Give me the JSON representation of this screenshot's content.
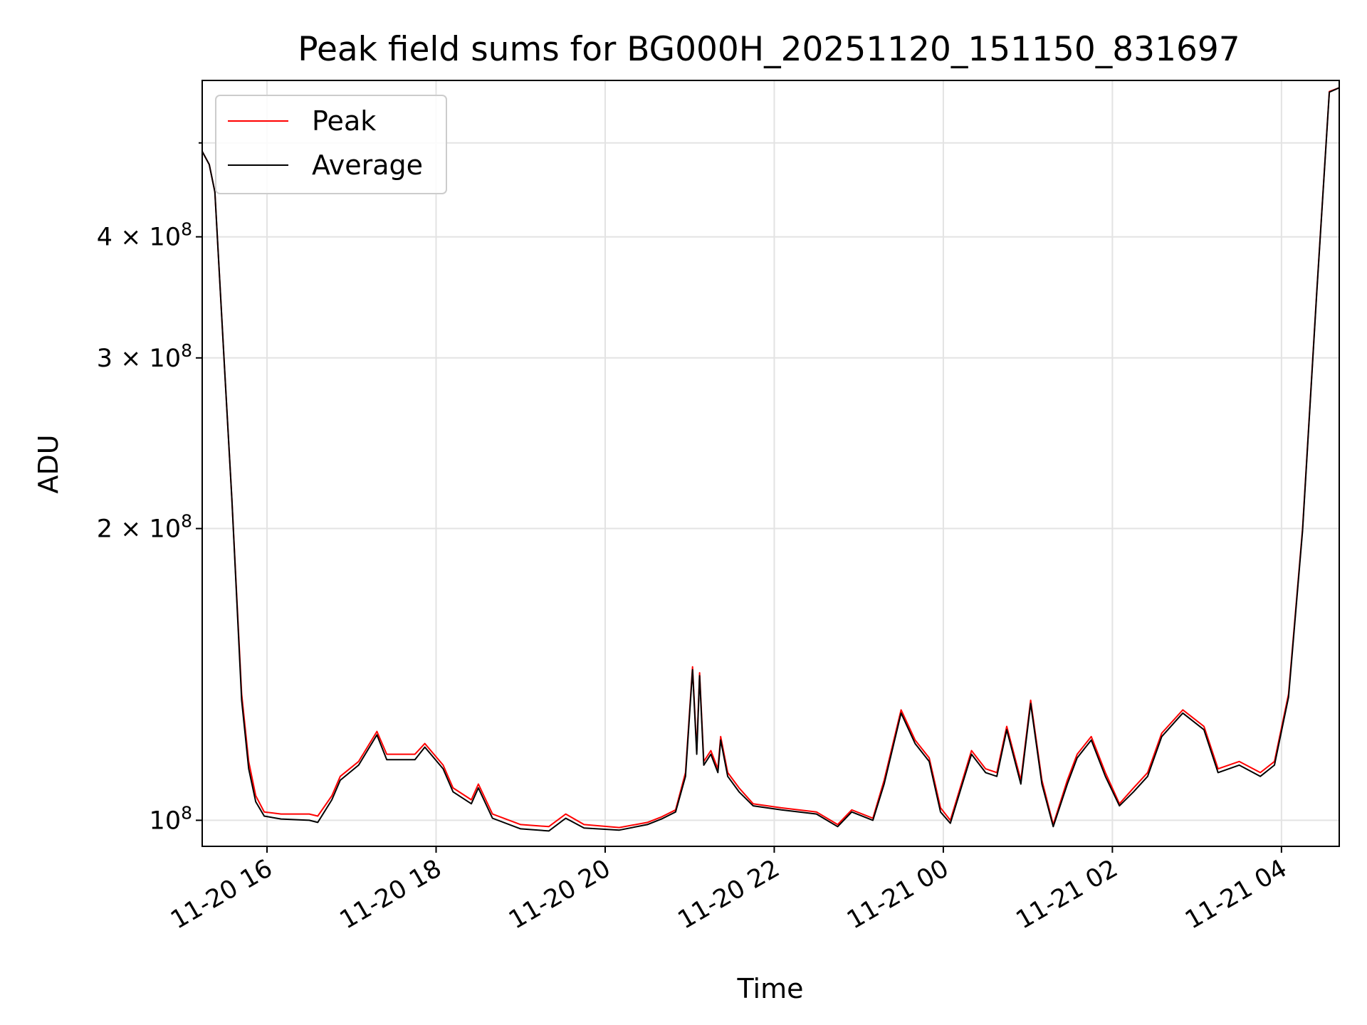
{
  "chart_data": {
    "type": "line",
    "title": "Peak field sums for BG000H_20251120_151150_831697",
    "xlabel": "Time",
    "ylabel": "ADU",
    "yscale": "log",
    "grid": true,
    "legend_position": "top-left",
    "xlim": [
      "2025-11-20 15:14",
      "2025-11-21 04:41"
    ],
    "ylim": [
      94000000,
      580000000
    ],
    "x_ticks": [
      {
        "value": "2025-11-20 16:00",
        "label": "11-20 16"
      },
      {
        "value": "2025-11-20 18:00",
        "label": "11-20 18"
      },
      {
        "value": "2025-11-20 20:00",
        "label": "11-20 20"
      },
      {
        "value": "2025-11-20 22:00",
        "label": "11-20 22"
      },
      {
        "value": "2025-11-21 00:00",
        "label": "11-21 00"
      },
      {
        "value": "2025-11-21 02:00",
        "label": "11-21 02"
      },
      {
        "value": "2025-11-21 04:00",
        "label": "11-21 04"
      }
    ],
    "y_ticks": [
      {
        "value": 100000000,
        "base": "10",
        "exp": "8"
      },
      {
        "value": 200000000,
        "base": "2 × 10",
        "exp": "8"
      },
      {
        "value": 300000000,
        "base": "3 × 10",
        "exp": "8"
      },
      {
        "value": 400000000,
        "base": "4 × 10",
        "exp": "8"
      }
    ],
    "y_minor_ticks": [
      500000000
    ],
    "series": [
      {
        "name": "Peak",
        "color": "#ff0000",
        "points": [
          [
            "2025-11-20 15:14",
            490000000
          ],
          [
            "2025-11-20 15:19",
            475000000
          ],
          [
            "2025-11-20 15:23",
            445000000
          ],
          [
            "2025-11-20 15:30",
            290000000
          ],
          [
            "2025-11-20 15:35",
            215000000
          ],
          [
            "2025-11-20 15:42",
            135000000
          ],
          [
            "2025-11-20 15:47",
            115000000
          ],
          [
            "2025-11-20 15:52",
            106000000
          ],
          [
            "2025-11-20 15:58",
            102000000
          ],
          [
            "2025-11-20 16:10",
            101500000
          ],
          [
            "2025-11-20 16:30",
            101500000
          ],
          [
            "2025-11-20 16:36",
            101000000
          ],
          [
            "2025-11-20 16:46",
            106000000
          ],
          [
            "2025-11-20 16:52",
            111000000
          ],
          [
            "2025-11-20 17:05",
            115000000
          ],
          [
            "2025-11-20 17:18",
            123500000
          ],
          [
            "2025-11-20 17:25",
            117000000
          ],
          [
            "2025-11-20 17:45",
            117000000
          ],
          [
            "2025-11-20 17:52",
            120000000
          ],
          [
            "2025-11-20 18:05",
            114000000
          ],
          [
            "2025-11-20 18:12",
            108000000
          ],
          [
            "2025-11-20 18:25",
            105000000
          ],
          [
            "2025-11-20 18:30",
            109000000
          ],
          [
            "2025-11-20 18:40",
            101500000
          ],
          [
            "2025-11-20 19:00",
            99000000
          ],
          [
            "2025-11-20 19:20",
            98500000
          ],
          [
            "2025-11-20 19:32",
            101500000
          ],
          [
            "2025-11-20 19:45",
            99000000
          ],
          [
            "2025-11-20 20:10",
            98300000
          ],
          [
            "2025-11-20 20:30",
            99500000
          ],
          [
            "2025-11-20 20:40",
            100800000
          ],
          [
            "2025-11-20 20:50",
            102500000
          ],
          [
            "2025-11-20 20:57",
            112000000
          ],
          [
            "2025-11-20 21:02",
            144000000
          ],
          [
            "2025-11-20 21:05",
            118000000
          ],
          [
            "2025-11-20 21:07",
            142000000
          ],
          [
            "2025-11-20 21:10",
            115000000
          ],
          [
            "2025-11-20 21:15",
            118000000
          ],
          [
            "2025-11-20 21:20",
            113000000
          ],
          [
            "2025-11-20 21:22",
            122000000
          ],
          [
            "2025-11-20 21:27",
            112000000
          ],
          [
            "2025-11-20 21:35",
            108000000
          ],
          [
            "2025-11-20 21:45",
            104000000
          ],
          [
            "2025-11-20 22:05",
            103000000
          ],
          [
            "2025-11-20 22:30",
            102000000
          ],
          [
            "2025-11-20 22:45",
            99000000
          ],
          [
            "2025-11-20 22:55",
            102500000
          ],
          [
            "2025-11-20 23:10",
            100500000
          ],
          [
            "2025-11-20 23:18",
            110000000
          ],
          [
            "2025-11-20 23:30",
            130000000
          ],
          [
            "2025-11-20 23:40",
            121000000
          ],
          [
            "2025-11-20 23:50",
            116000000
          ],
          [
            "2025-11-20 23:58",
            103000000
          ],
          [
            "2025-11-21 00:05",
            100000000
          ],
          [
            "2025-11-21 00:20",
            118000000
          ],
          [
            "2025-11-21 00:30",
            113000000
          ],
          [
            "2025-11-21 00:38",
            112000000
          ],
          [
            "2025-11-21 00:45",
            125000000
          ],
          [
            "2025-11-21 00:55",
            110000000
          ],
          [
            "2025-11-21 01:02",
            133000000
          ],
          [
            "2025-11-21 01:10",
            110000000
          ],
          [
            "2025-11-21 01:18",
            99000000
          ],
          [
            "2025-11-21 01:28",
            110000000
          ],
          [
            "2025-11-21 01:35",
            117000000
          ],
          [
            "2025-11-21 01:45",
            122000000
          ],
          [
            "2025-11-21 01:55",
            112000000
          ],
          [
            "2025-11-21 02:05",
            104000000
          ],
          [
            "2025-11-21 02:15",
            108000000
          ],
          [
            "2025-11-21 02:25",
            112000000
          ],
          [
            "2025-11-21 02:35",
            123000000
          ],
          [
            "2025-11-21 02:50",
            130000000
          ],
          [
            "2025-11-21 03:05",
            125000000
          ],
          [
            "2025-11-21 03:15",
            113000000
          ],
          [
            "2025-11-21 03:30",
            115000000
          ],
          [
            "2025-11-21 03:45",
            112000000
          ],
          [
            "2025-11-21 03:55",
            115000000
          ],
          [
            "2025-11-21 04:05",
            135000000
          ],
          [
            "2025-11-21 04:15",
            200000000
          ],
          [
            "2025-11-21 04:25",
            350000000
          ],
          [
            "2025-11-21 04:34",
            565000000
          ],
          [
            "2025-11-21 04:41",
            570000000
          ]
        ]
      },
      {
        "name": "Average",
        "color": "#000000",
        "points": [
          [
            "2025-11-20 15:14",
            490000000
          ],
          [
            "2025-11-20 15:19",
            475000000
          ],
          [
            "2025-11-20 15:23",
            445000000
          ],
          [
            "2025-11-20 15:30",
            290000000
          ],
          [
            "2025-11-20 15:35",
            215000000
          ],
          [
            "2025-11-20 15:42",
            133000000
          ],
          [
            "2025-11-20 15:47",
            113000000
          ],
          [
            "2025-11-20 15:52",
            104500000
          ],
          [
            "2025-11-20 15:58",
            101000000
          ],
          [
            "2025-11-20 16:10",
            100300000
          ],
          [
            "2025-11-20 16:30",
            100000000
          ],
          [
            "2025-11-20 16:36",
            99500000
          ],
          [
            "2025-11-20 16:46",
            105000000
          ],
          [
            "2025-11-20 16:52",
            110000000
          ],
          [
            "2025-11-20 17:05",
            114000000
          ],
          [
            "2025-11-20 17:18",
            122500000
          ],
          [
            "2025-11-20 17:25",
            115500000
          ],
          [
            "2025-11-20 17:45",
            115500000
          ],
          [
            "2025-11-20 17:52",
            119000000
          ],
          [
            "2025-11-20 18:05",
            113000000
          ],
          [
            "2025-11-20 18:12",
            107000000
          ],
          [
            "2025-11-20 18:25",
            104000000
          ],
          [
            "2025-11-20 18:30",
            108000000
          ],
          [
            "2025-11-20 18:40",
            100500000
          ],
          [
            "2025-11-20 19:00",
            98000000
          ],
          [
            "2025-11-20 19:20",
            97500000
          ],
          [
            "2025-11-20 19:32",
            100500000
          ],
          [
            "2025-11-20 19:45",
            98200000
          ],
          [
            "2025-11-20 20:10",
            97700000
          ],
          [
            "2025-11-20 20:30",
            99000000
          ],
          [
            "2025-11-20 20:40",
            100300000
          ],
          [
            "2025-11-20 20:50",
            102000000
          ],
          [
            "2025-11-20 20:57",
            111000000
          ],
          [
            "2025-11-20 21:02",
            143000000
          ],
          [
            "2025-11-20 21:05",
            117000000
          ],
          [
            "2025-11-20 21:07",
            141000000
          ],
          [
            "2025-11-20 21:10",
            114000000
          ],
          [
            "2025-11-20 21:15",
            117000000
          ],
          [
            "2025-11-20 21:20",
            112000000
          ],
          [
            "2025-11-20 21:22",
            121000000
          ],
          [
            "2025-11-20 21:27",
            111000000
          ],
          [
            "2025-11-20 21:35",
            107000000
          ],
          [
            "2025-11-20 21:45",
            103500000
          ],
          [
            "2025-11-20 22:05",
            102500000
          ],
          [
            "2025-11-20 22:30",
            101500000
          ],
          [
            "2025-11-20 22:45",
            98500000
          ],
          [
            "2025-11-20 22:55",
            102000000
          ],
          [
            "2025-11-20 23:10",
            100000000
          ],
          [
            "2025-11-20 23:18",
            109000000
          ],
          [
            "2025-11-20 23:30",
            129000000
          ],
          [
            "2025-11-20 23:40",
            120000000
          ],
          [
            "2025-11-20 23:50",
            115000000
          ],
          [
            "2025-11-20 23:58",
            102000000
          ],
          [
            "2025-11-21 00:05",
            99300000
          ],
          [
            "2025-11-21 00:20",
            117000000
          ],
          [
            "2025-11-21 00:30",
            112000000
          ],
          [
            "2025-11-21 00:38",
            111000000
          ],
          [
            "2025-11-21 00:45",
            124000000
          ],
          [
            "2025-11-21 00:55",
            109000000
          ],
          [
            "2025-11-21 01:02",
            132000000
          ],
          [
            "2025-11-21 01:10",
            109000000
          ],
          [
            "2025-11-21 01:18",
            98500000
          ],
          [
            "2025-11-21 01:28",
            109000000
          ],
          [
            "2025-11-21 01:35",
            116000000
          ],
          [
            "2025-11-21 01:45",
            121000000
          ],
          [
            "2025-11-21 01:55",
            111000000
          ],
          [
            "2025-11-21 02:05",
            103500000
          ],
          [
            "2025-11-21 02:15",
            107000000
          ],
          [
            "2025-11-21 02:25",
            111000000
          ],
          [
            "2025-11-21 02:35",
            122000000
          ],
          [
            "2025-11-21 02:50",
            129000000
          ],
          [
            "2025-11-21 03:05",
            124000000
          ],
          [
            "2025-11-21 03:15",
            112000000
          ],
          [
            "2025-11-21 03:30",
            114000000
          ],
          [
            "2025-11-21 03:45",
            111000000
          ],
          [
            "2025-11-21 03:55",
            114000000
          ],
          [
            "2025-11-21 04:05",
            134000000
          ],
          [
            "2025-11-21 04:15",
            199000000
          ],
          [
            "2025-11-21 04:25",
            349000000
          ],
          [
            "2025-11-21 04:34",
            564000000
          ],
          [
            "2025-11-21 04:41",
            570000000
          ]
        ]
      }
    ]
  }
}
